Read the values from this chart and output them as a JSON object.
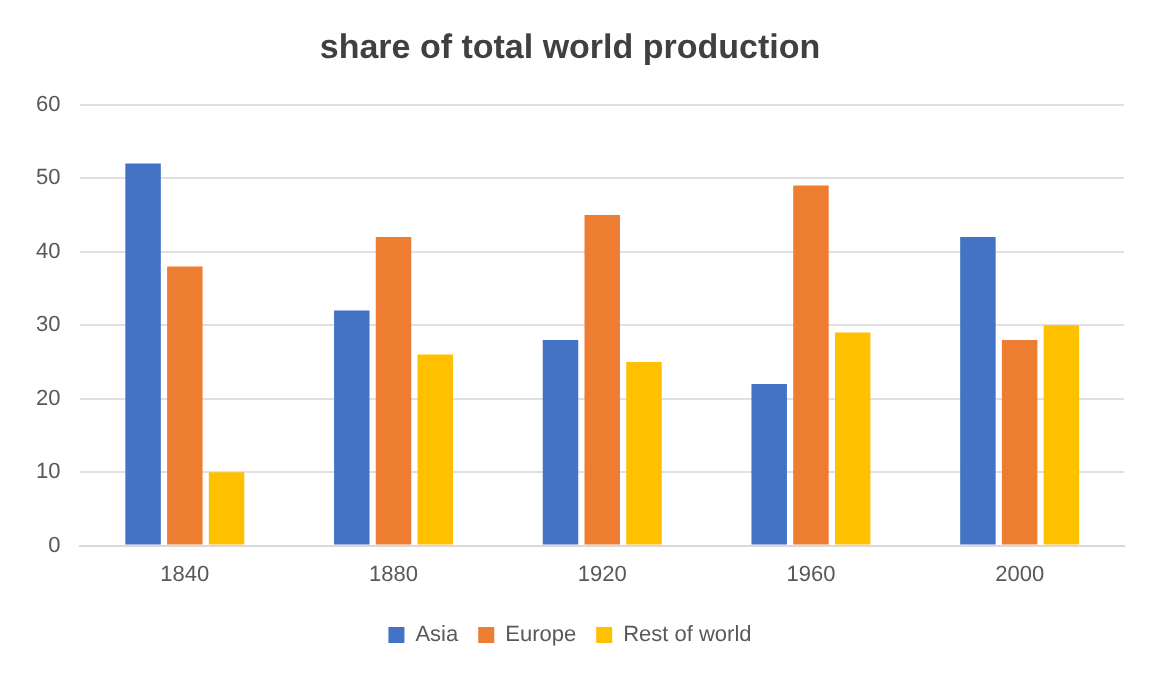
{
  "chart_data": {
    "type": "bar",
    "title": "share of total world production",
    "categories": [
      "1840",
      "1880",
      "1920",
      "1960",
      "2000"
    ],
    "series": [
      {
        "name": "Asia",
        "color": "#4472c4",
        "values": [
          52,
          32,
          28,
          22,
          42
        ]
      },
      {
        "name": "Europe",
        "color": "#ed7d31",
        "values": [
          38,
          42,
          45,
          49,
          28
        ]
      },
      {
        "name": "Rest of world",
        "color": "#ffc000",
        "values": [
          10,
          26,
          25,
          29,
          30
        ]
      }
    ],
    "ylim": [
      0,
      60
    ],
    "yticks": [
      0,
      10,
      20,
      30,
      40,
      50,
      60
    ],
    "grid": "y",
    "legend": "bottom"
  }
}
